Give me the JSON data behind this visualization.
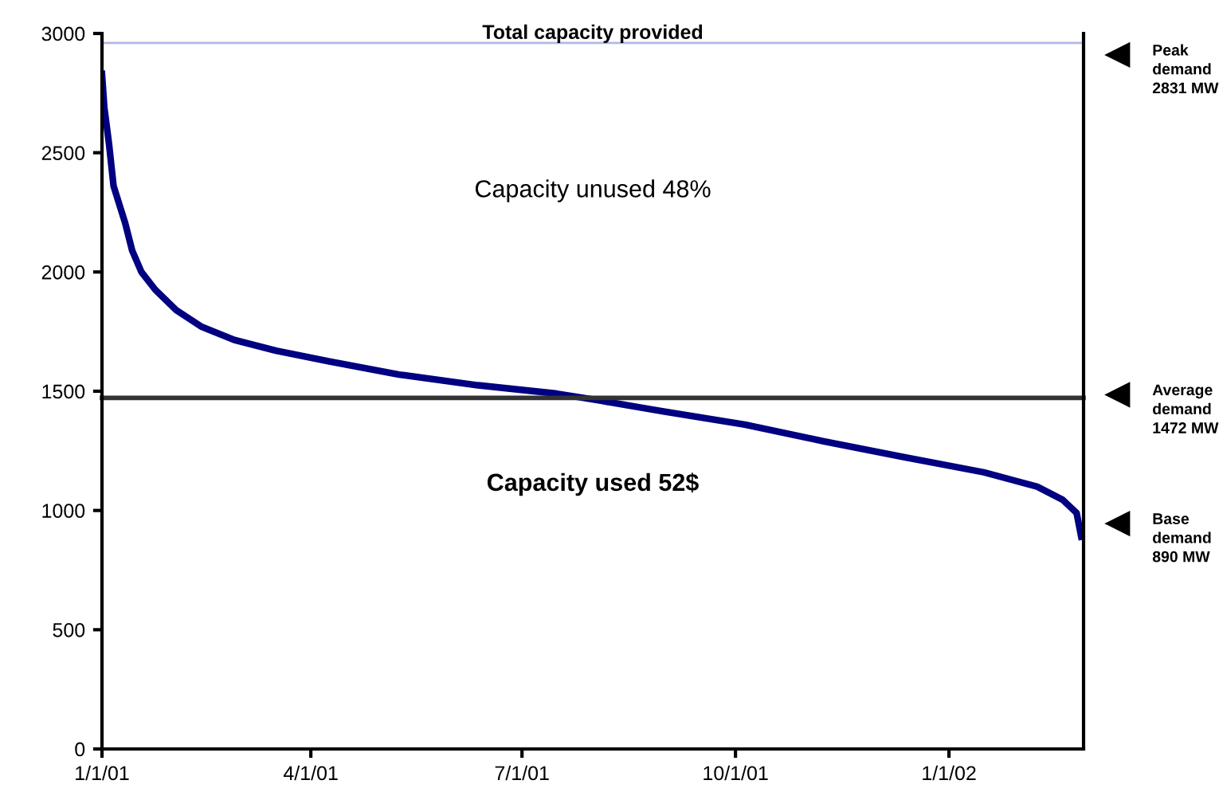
{
  "chart_data": {
    "type": "line",
    "x": [
      "2001-01-01",
      "2001-01-02",
      "2001-01-04",
      "2001-01-06",
      "2001-01-11",
      "2001-01-14",
      "2001-01-18",
      "2001-01-24",
      "2001-02-02",
      "2001-02-13",
      "2001-02-27",
      "2001-03-17",
      "2001-04-09",
      "2001-05-09",
      "2001-06-12",
      "2001-07-16",
      "2001-08-04",
      "2001-08-31",
      "2001-10-05",
      "2001-11-08",
      "2001-12-12",
      "2002-01-16",
      "2002-02-08",
      "2002-02-19",
      "2002-02-25",
      "2002-02-27"
    ],
    "series": [
      {
        "color": "#000080",
        "values": [
          2831,
          2690,
          2540,
          2360,
          2205,
          2090,
          2000,
          1925,
          1840,
          1770,
          1715,
          1670,
          1625,
          1570,
          1525,
          1490,
          1460,
          1415,
          1360,
          1290,
          1225,
          1160,
          1100,
          1045,
          990,
          890
        ]
      }
    ],
    "xlim": [
      "2001-01-01",
      "2002-02-28"
    ],
    "xticks": [
      {
        "value": "2001-01-01",
        "label": "1/1/01"
      },
      {
        "value": "2001-04-01",
        "label": "4/1/01"
      },
      {
        "value": "2001-07-01",
        "label": "7/1/01"
      },
      {
        "value": "2001-10-01",
        "label": "10/1/01"
      },
      {
        "value": "2002-01-01",
        "label": "1/1/02"
      }
    ],
    "ylim": [
      0,
      3000
    ],
    "yticks": [
      0,
      500,
      1000,
      1500,
      2000,
      2500,
      3000
    ],
    "ref_lines": [
      {
        "axis": "y",
        "value": 2960,
        "label": "Total capacity provided",
        "color": "#b0b8e8"
      },
      {
        "axis": "y",
        "value": 1472,
        "color": "#333333"
      }
    ],
    "annotations": [
      "Capacity unused 48%",
      "Capacity used 52$",
      "Peak\ndemand\n2831 MW",
      "Average\ndemand\n1472 MW",
      "Base\ndemand\n890 MW"
    ],
    "grid": false,
    "legend": false,
    "marker": "none",
    "line_style": "solid"
  }
}
